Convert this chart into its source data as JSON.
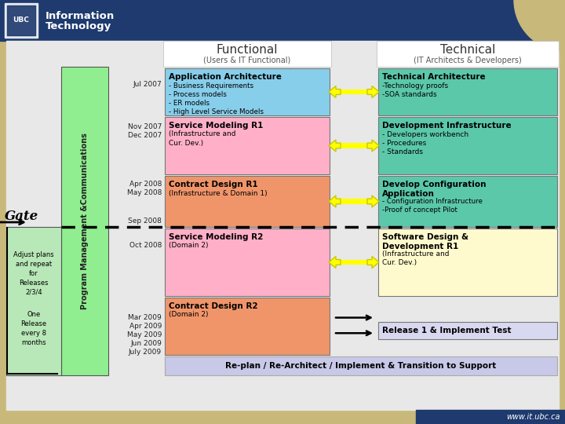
{
  "bg_color": "#c8b87a",
  "header_bg": "#1e3a6e",
  "content_bg": "#e8e8e8",
  "title_functional": "Functional",
  "subtitle_functional": "(Users & IT Functional)",
  "title_technical": "Technical",
  "subtitle_technical": "(IT Architects & Developers)",
  "pm_label": "Program Management &Communications",
  "gate_label": "Gate",
  "left_note1": "Adjust plans\nand repeat\nfor\nReleases\n2/3/4",
  "left_note2": "One\nRelease\nevery 8\nmonths",
  "footer_url": "www.it.ubc.ca",
  "func_box_app_arch_title": "Application Architecture",
  "func_box_app_arch_body": "- Business Requirements\n- Process models\n- ER models\n- High Level Service Models",
  "func_box_app_arch_color": "#87ceeb",
  "func_box_sm1_title": "Service Modeling R1",
  "func_box_sm1_body": "(Infrastructure and\nCur. Dev.)",
  "func_box_sm1_color": "#ffb0c8",
  "func_box_cd1_title": "Contract Design R1",
  "func_box_cd1_body": "(Infrastructure & Domain 1)",
  "func_box_cd1_color": "#f0956a",
  "func_box_sm2_title": "Service Modeling R2",
  "func_box_sm2_body": "(Domain 2)",
  "func_box_sm2_color": "#ffb0c8",
  "func_box_cd2_title": "Contract Design R2",
  "func_box_cd2_body": "(Domain 2)",
  "func_box_cd2_color": "#f0956a",
  "tech_box_ta_title": "Technical Architecture",
  "tech_box_ta_body": "-Technology proofs\n-SOA standards",
  "tech_box_ta_color": "#5bc8aa",
  "tech_box_di_title": "Development Infrastructure",
  "tech_box_di_body": "- Developers workbench\n- Procedures\n- Standards",
  "tech_box_di_color": "#5bc8aa",
  "tech_box_dca_title": "Develop Configuration\nApplication",
  "tech_box_dca_body": "- Configuration Infrastructure\n-Proof of concept Pilot",
  "tech_box_dca_color": "#5bc8aa",
  "tech_box_sd_title": "Software Design &\nDevelopment R1",
  "tech_box_sd_body": "(Infrastructure and\nCur. Dev.)",
  "tech_box_sd_color": "#fffacd",
  "tech_box_rel_title": "Release 1 & Implement Test",
  "tech_box_rel_color": "#d8d8f0",
  "replan_text": "Re-plan / Re-Architect / Implement & Transition to Support",
  "replan_color": "#c8c8e8",
  "arrow_color": "#ffff00",
  "arrow_edge": "#c8c800",
  "date1": "Jul 2007",
  "date2": "Nov 2007\nDec 2007",
  "date3": "Apr 2008\nMay 2008",
  "date4": "Sep 2008",
  "date5": "Oct 2008",
  "date6": "Mar 2009\nApr 2009\nMay 2009\nJun 2009\nJuly 2009",
  "pm_green": "#90ee90",
  "gate_green": "#b8e8b8"
}
